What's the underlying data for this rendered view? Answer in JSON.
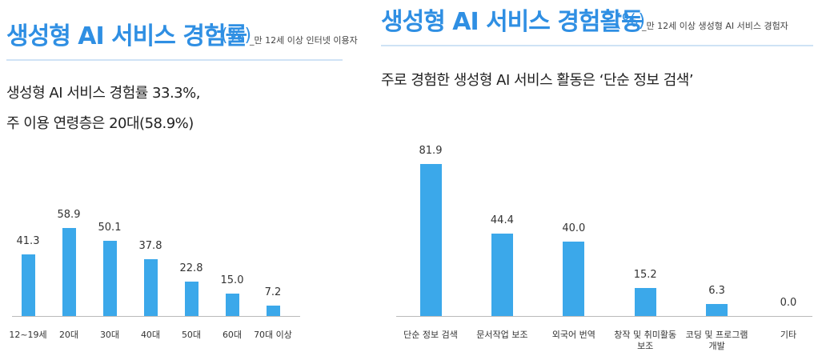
{
  "chart_data": [
    {
      "type": "bar",
      "title": "생성형 AI 서비스 경험률",
      "unit": "(%)",
      "subtitle": "_만 12세 이상 인터넷 이용자",
      "annotations": [
        "생성형 AI 서비스 경험률 33.3%,",
        "주 이용 연령층은 20대(58.9%)"
      ],
      "categories": [
        "12~19세",
        "20대",
        "30대",
        "40대",
        "50대",
        "60대",
        "70대 이상"
      ],
      "values": [
        41.3,
        58.9,
        50.1,
        37.8,
        22.8,
        15.0,
        7.2
      ],
      "value_labels": [
        "41.3",
        "58.9",
        "50.1",
        "37.8",
        "22.8",
        "15.0",
        "7.2"
      ],
      "color": "#3ba8ea",
      "ylim": [
        0,
        70
      ]
    },
    {
      "type": "bar",
      "title": "생성형 AI 서비스 경험활동",
      "unit": "(%)",
      "subtitle": "_만 12세 이상 생성형 AI 서비스 경험자",
      "annotations": [
        "주로 경험한 생성형 AI 서비스 활동은 ‘단순 정보 검색’"
      ],
      "categories": [
        "단순 정보 검색",
        "문서작업 보조",
        "외국어 번역",
        "창작 및 취미활동 보조",
        "코딩 및 프로그램 개발",
        "기타"
      ],
      "values": [
        81.9,
        44.4,
        40.0,
        15.2,
        6.3,
        0.0
      ],
      "value_labels": [
        "81.9",
        "44.4",
        "40.0",
        "15.2",
        "6.3",
        "0.0"
      ],
      "color": "#3ba8ea",
      "ylim": [
        0,
        90
      ]
    }
  ]
}
